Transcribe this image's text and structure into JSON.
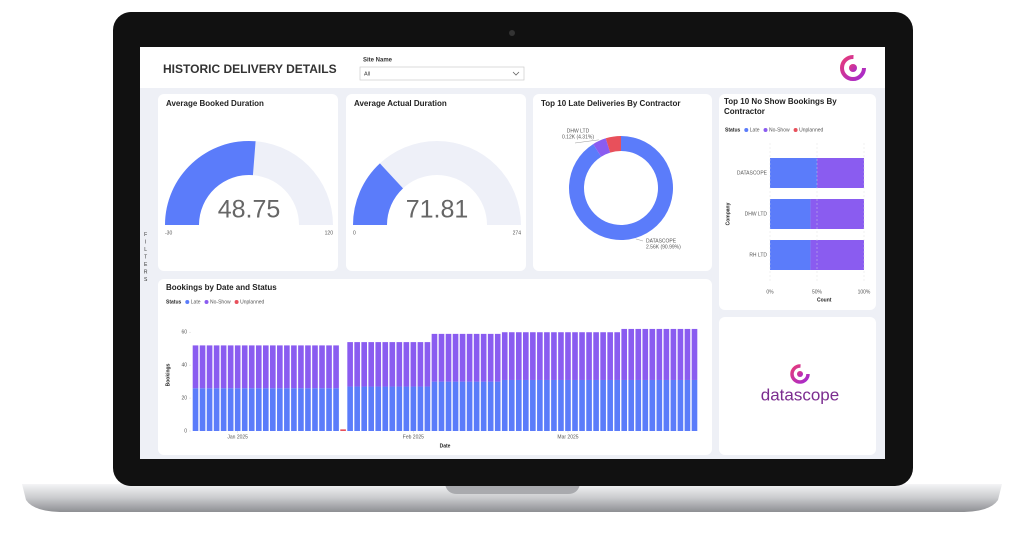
{
  "header": {
    "title": "HISTORIC DELIVERY DETAILS",
    "filter_label": "Site Name",
    "filter_value": "All",
    "side_panel": "FILTERS"
  },
  "logo_text": "datascope",
  "chart_data": [
    {
      "type": "gauge",
      "title": "Average Booked Duration",
      "value": 48.75,
      "min": -30,
      "max": 120,
      "color": "#5b7cfa",
      "track_color": "#eef0f8"
    },
    {
      "type": "gauge",
      "title": "Average Actual Duration",
      "value": 71.81,
      "min": 0,
      "max": 274,
      "color": "#5b7cfa",
      "track_color": "#eef0f8"
    },
    {
      "type": "donut",
      "title": "Top 10 Late Deliveries By Contractor",
      "categories": [
        "DATASCOPE",
        "DHW LTD",
        null
      ],
      "values": [
        2560,
        120,
        133
      ],
      "value_labels": [
        "2.56K (90.99%)",
        "0.12K (4.31%)",
        null
      ],
      "colors": [
        "#5b7cfa",
        "#8a5cf0",
        "#e8505b"
      ]
    },
    {
      "type": "bar",
      "orientation": "horizontal",
      "stacked": true,
      "title": "Top 10 No Show Bookings By Contractor",
      "legend_title": "Status",
      "ylabel": "Company",
      "xlabel": "Count",
      "categories": [
        "DATASCOPE",
        "DHW LTD",
        "RH LTD"
      ],
      "series": [
        {
          "name": "Late",
          "color": "#5b7cfa",
          "values": [
            50,
            43,
            43
          ]
        },
        {
          "name": "No-Show",
          "color": "#8a5cf0",
          "values": [
            50,
            57,
            57
          ]
        },
        {
          "name": "Unplanned",
          "color": "#e8505b",
          "values": [
            null,
            null,
            null
          ]
        }
      ],
      "xlim": [
        0,
        100
      ],
      "xticks": [
        {
          "value": 0,
          "label": "0%"
        },
        {
          "value": 50,
          "label": "50%"
        },
        {
          "value": 100,
          "label": "100%"
        }
      ]
    },
    {
      "type": "bar",
      "orientation": "vertical",
      "stacked": true,
      "title": "Bookings by Date and Status",
      "legend_title": "Status",
      "xlabel": "Date",
      "ylabel": "Bookings",
      "series": [
        {
          "name": "Late",
          "color": "#5b7cfa",
          "values": [
            26,
            26,
            26,
            26,
            26,
            26,
            26,
            26,
            26,
            26,
            26,
            26,
            26,
            26,
            26,
            26,
            26,
            26,
            26,
            26,
            26,
            null,
            27,
            27,
            27,
            27,
            27,
            27,
            27,
            27,
            27,
            27,
            27,
            27,
            30,
            30,
            30,
            30,
            30,
            30,
            30,
            30,
            30,
            30,
            31,
            31,
            31,
            31,
            31,
            31,
            31,
            31,
            31,
            31,
            31,
            31,
            31,
            31,
            31,
            31,
            31,
            31,
            31,
            31,
            31,
            31,
            31,
            31,
            31,
            31,
            31,
            31
          ]
        },
        {
          "name": "No-Show",
          "color": "#8a5cf0",
          "values": [
            26,
            26,
            26,
            26,
            26,
            26,
            26,
            26,
            26,
            26,
            26,
            26,
            26,
            26,
            26,
            26,
            26,
            26,
            26,
            26,
            26,
            null,
            27,
            27,
            27,
            27,
            27,
            27,
            27,
            27,
            27,
            27,
            27,
            27,
            29,
            29,
            29,
            29,
            29,
            29,
            29,
            29,
            29,
            29,
            29,
            29,
            29,
            29,
            29,
            29,
            29,
            29,
            29,
            29,
            29,
            29,
            29,
            29,
            29,
            29,
            29,
            31,
            31,
            31,
            31,
            31,
            31,
            31,
            31,
            31,
            31,
            31
          ]
        },
        {
          "name": "Unplanned",
          "color": "#e8505b",
          "values": [
            null,
            null,
            null,
            null,
            null,
            null,
            null,
            null,
            null,
            null,
            null,
            null,
            null,
            null,
            null,
            null,
            null,
            null,
            null,
            null,
            null,
            1,
            null,
            null,
            null,
            null,
            null,
            null,
            null,
            null,
            null,
            null,
            null,
            null,
            null,
            null,
            null,
            null,
            null,
            null,
            null,
            null,
            null,
            null,
            null,
            null,
            null,
            null,
            null,
            null,
            null,
            null,
            null,
            null,
            null,
            null,
            null,
            null,
            null,
            null,
            null,
            null,
            null,
            null,
            null,
            null,
            null,
            null,
            null,
            null,
            null,
            null
          ]
        }
      ],
      "ylim": [
        0,
        65
      ],
      "yticks": [
        0,
        20,
        40,
        60
      ],
      "xticks": [
        {
          "value": 6,
          "label": "Jan 2025"
        },
        {
          "value": 31,
          "label": "Feb 2025"
        },
        {
          "value": 53,
          "label": "Mar 2025"
        }
      ]
    }
  ]
}
